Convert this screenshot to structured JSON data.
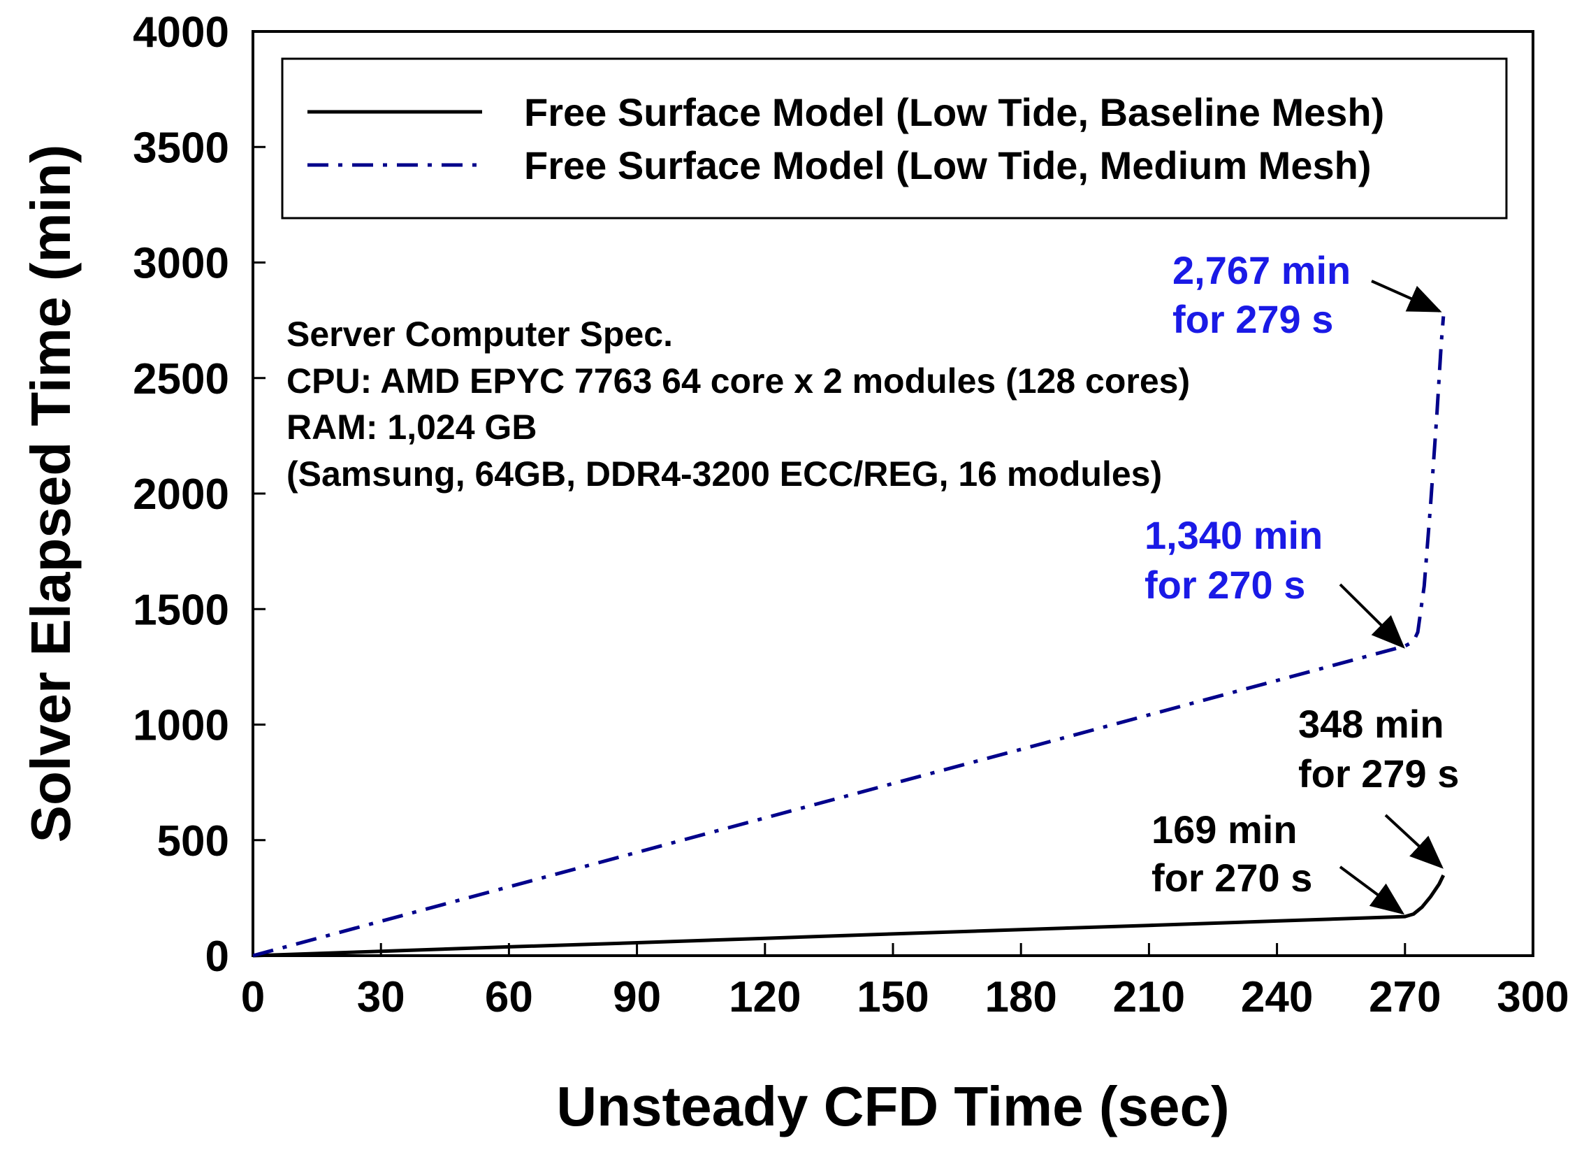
{
  "chart_data": {
    "type": "line",
    "xlabel": "Unsteady CFD Time (sec)",
    "ylabel": "Solver Elapsed Time (min)",
    "xlim": [
      0,
      300
    ],
    "ylim": [
      0,
      4000
    ],
    "xticks": [
      0,
      30,
      60,
      90,
      120,
      150,
      180,
      210,
      240,
      270,
      300
    ],
    "yticks": [
      0,
      500,
      1000,
      1500,
      2000,
      2500,
      3000,
      3500,
      4000
    ],
    "xtick_labels": [
      "0",
      "30",
      "60",
      "90",
      "120",
      "150",
      "180",
      "210",
      "240",
      "270",
      "300"
    ],
    "ytick_labels": [
      "0",
      "500",
      "1000",
      "1500",
      "2000",
      "2500",
      "3000",
      "3500",
      "4000"
    ],
    "grid": false,
    "legend_position": "top",
    "series": [
      {
        "name": "Free Surface Model (Low Tide, Baseline Mesh)",
        "color": "#000000",
        "style": "solid",
        "x": [
          0,
          30,
          60,
          90,
          120,
          150,
          180,
          210,
          240,
          270,
          272,
          274,
          276,
          278,
          279
        ],
        "y": [
          0,
          19,
          38,
          56,
          75,
          94,
          113,
          131,
          150,
          169,
          180,
          210,
          255,
          310,
          348
        ]
      },
      {
        "name": "Free Surface Model (Low Tide, Medium Mesh)",
        "color": "#00008B",
        "style": "dashdot",
        "x": [
          0,
          30,
          60,
          90,
          120,
          150,
          180,
          210,
          240,
          270,
          272,
          273,
          274.5,
          276,
          277.5,
          278.5,
          279
        ],
        "y": [
          0,
          149,
          298,
          447,
          596,
          745,
          893,
          1042,
          1191,
          1340,
          1360,
          1400,
          1600,
          1950,
          2350,
          2650,
          2767
        ]
      }
    ],
    "note_lines": [
      "Server Computer Spec.",
      "CPU: AMD EPYC 7763 64 core x 2 modules (128 cores)",
      "RAM: 1,024 GB",
      "(Samsung, 64GB, DDR4-3200 ECC/REG, 16 modules)"
    ],
    "annotations": [
      {
        "lines": [
          "2,767 min",
          "for 279 s"
        ],
        "color": "#1a1ae6",
        "target": [
          279,
          2767
        ]
      },
      {
        "lines": [
          "1,340 min",
          "for 270 s"
        ],
        "color": "#1a1ae6",
        "target": [
          270,
          1340
        ]
      },
      {
        "lines": [
          "348 min",
          "for 279 s"
        ],
        "color": "#000000",
        "target": [
          279,
          348
        ]
      },
      {
        "lines": [
          "169 min",
          "for 270 s"
        ],
        "color": "#000000",
        "target": [
          270,
          169
        ]
      }
    ]
  }
}
